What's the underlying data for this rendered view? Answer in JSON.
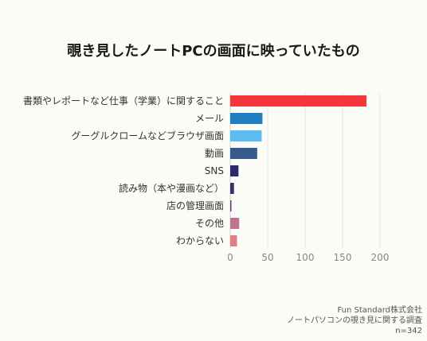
{
  "chart_data": {
    "type": "bar",
    "orientation": "horizontal",
    "title": "覗き見したノートPCの画面に映っていたもの",
    "categories": [
      "書類やレポートなど仕事（学業）に関すること",
      "メール",
      "グーグルクロームなどブラウザ画面",
      "動画",
      "SNS",
      "読み物（本や漫画など）",
      "店の管理画面",
      "その他",
      "わからない"
    ],
    "values": [
      182,
      43,
      42,
      36,
      11,
      5,
      1,
      12,
      9
    ],
    "colors": [
      "#f5343b",
      "#1f7fbf",
      "#5bbcef",
      "#345a8e",
      "#2c2a6e",
      "#3c2d6b",
      "#6a3a6a",
      "#c07390",
      "#e07d84"
    ],
    "label_colors": [
      "#333333",
      "#333333",
      "#333333",
      "#333333",
      "#888888",
      "#333333",
      "#333333",
      "#333333",
      "#333333"
    ],
    "x_ticks": [
      0,
      50,
      100,
      150,
      200
    ],
    "xlim": [
      0,
      200
    ],
    "grid": true,
    "legend": "none"
  },
  "footer": {
    "company": "Fun Standard株式会社",
    "survey": "ノートパソコンの覗き見に関する調査",
    "sample": "n=342"
  }
}
